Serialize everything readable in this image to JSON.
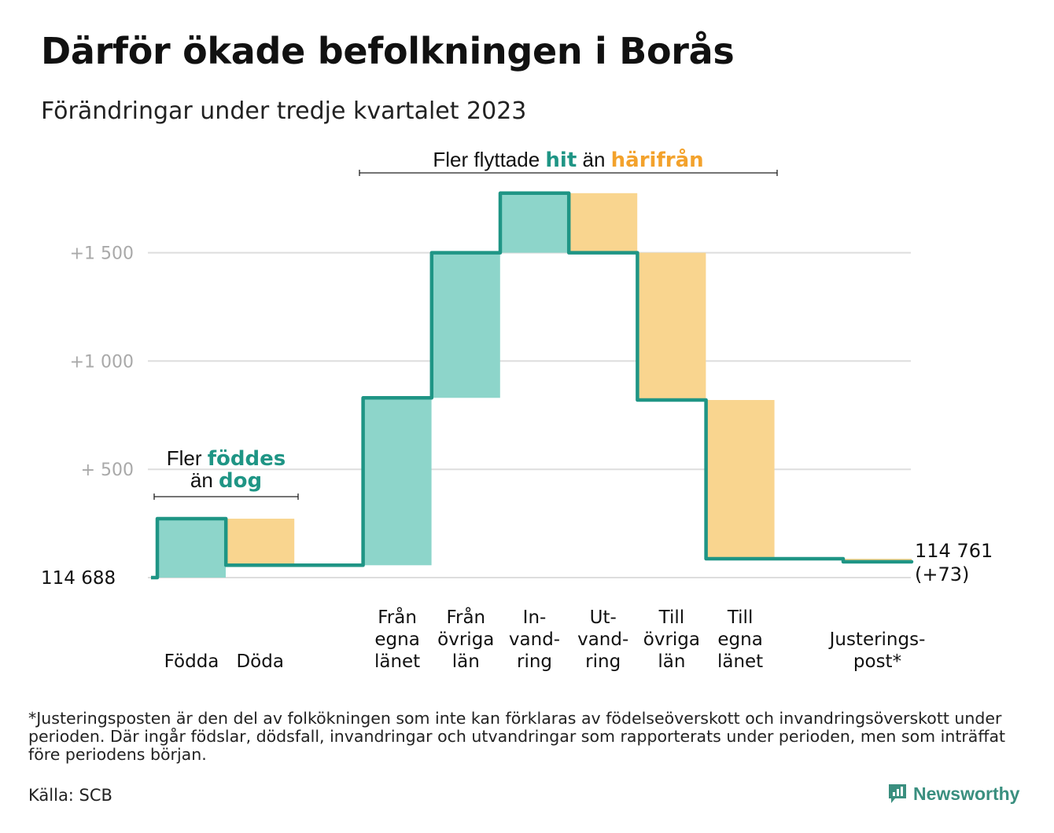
{
  "title": "Därför ökade befolkningen i Borås",
  "subtitle": "Förändringar under tredje kvartalet 2023",
  "footnote": "*Justeringsposten är den del av folkökningen som inte kan förklaras av födelseöverskott och invandringsöverskott under perioden. Där ingår födslar, dödsfall, invandringar och utvandringar som rapporterats under perioden, men som inträffat före periodens början.",
  "source": "Källa: SCB",
  "brand": "Newsworthy",
  "colors": {
    "increase": "#8dd5ca",
    "decrease": "#f9d58f",
    "line": "#1f9585",
    "teal_text": "#1f9585",
    "orange_text": "#f3a22c",
    "grid": "#dddddd"
  },
  "chart_data": {
    "type": "waterfall",
    "base": 114688,
    "base_label": "114 688",
    "end_label_1": "114 761",
    "end_label_2": "(+73)",
    "ylim": [
      0,
      1780
    ],
    "yticks": [
      {
        "value": 500,
        "label": "+ 500"
      },
      {
        "value": 1000,
        "label": "+1 000"
      },
      {
        "value": 1500,
        "label": "+1 500"
      }
    ],
    "categories": [
      "Födda",
      "Döda",
      "Från egna länet",
      "Från övriga län",
      "In-vandring",
      "Ut-vandring",
      "Till övriga län",
      "Till egna länet",
      "Justerings-post*"
    ],
    "category_lines": [
      [
        "Födda"
      ],
      [
        "Döda"
      ],
      [
        "Från",
        "egna",
        "länet"
      ],
      [
        "Från",
        "övriga",
        "län"
      ],
      [
        "In-",
        "vand-",
        "ring"
      ],
      [
        "Ut-",
        "vand-",
        "ring"
      ],
      [
        "Till",
        "övriga",
        "län"
      ],
      [
        "Till",
        "egna",
        "länet"
      ],
      [
        "Justerings-",
        "post*"
      ]
    ],
    "category_slots": [
      0,
      1,
      3,
      4,
      5,
      6,
      7,
      8,
      10
    ],
    "values": [
      272,
      -215,
      773,
      670,
      275,
      -275,
      -680,
      -733,
      -14
    ],
    "annotations": [
      {
        "text_parts": [
          "Fler ",
          "föddes"
        ],
        "line2_parts": [
          "än ",
          "dog"
        ],
        "from_slot": 0,
        "to_slot": 1
      },
      {
        "text_parts": [
          "Fler flyttade ",
          "hit",
          " än ",
          "härifrån"
        ],
        "from_slot": 3,
        "to_slot": 8
      }
    ]
  }
}
